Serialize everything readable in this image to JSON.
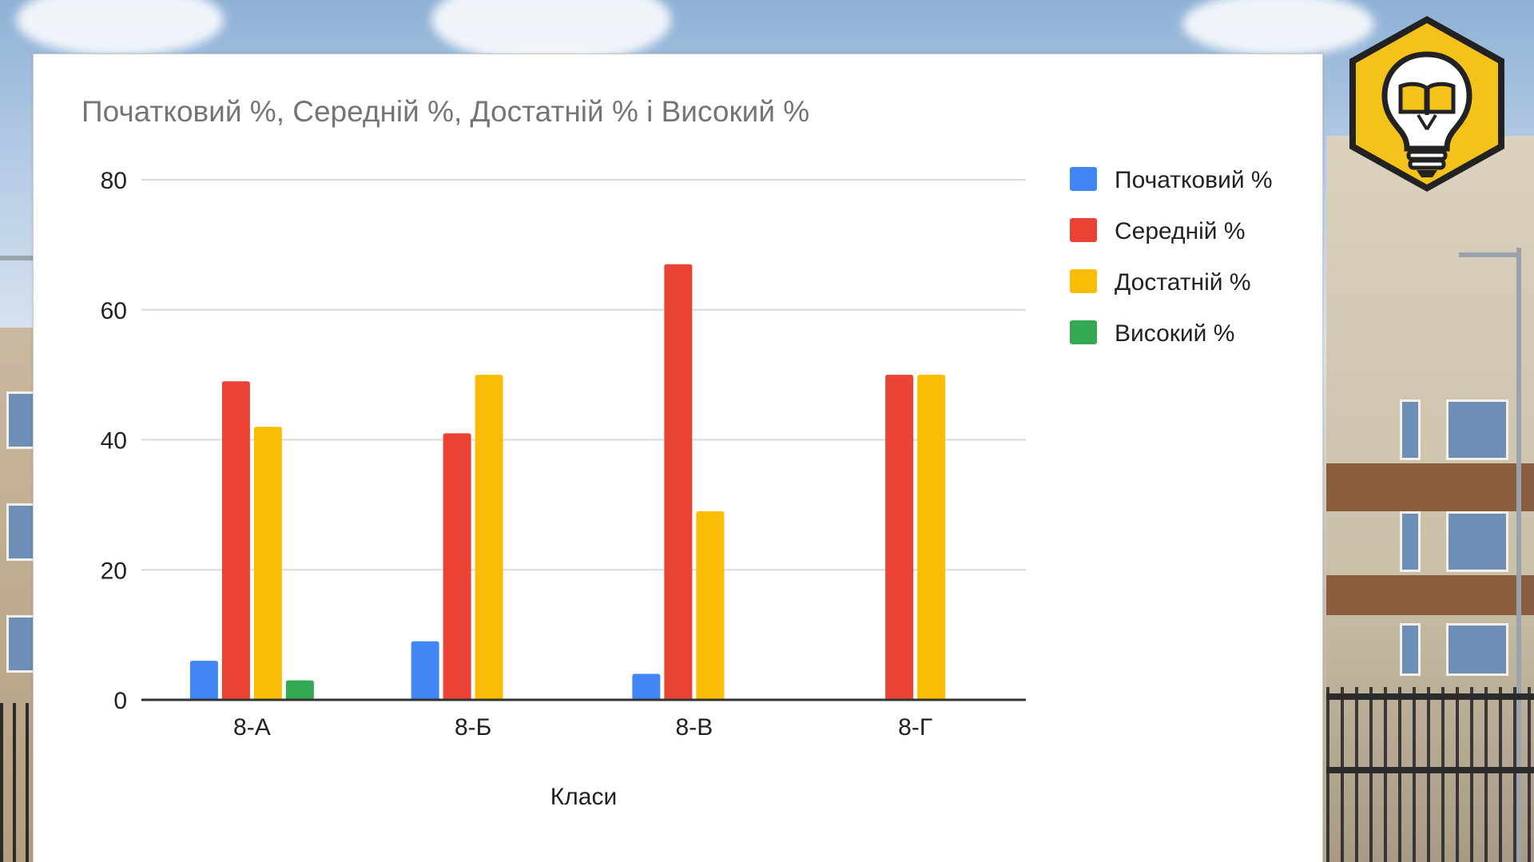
{
  "chart_data": {
    "type": "bar",
    "title": "Початковий %, Середній %, Достатній % і Високий %",
    "xlabel": "Класи",
    "ylabel": "",
    "categories": [
      "8-А",
      "8-Б",
      "8-В",
      "8-Г"
    ],
    "series": [
      {
        "name": "Початковий %",
        "color": "#4285f4",
        "values": [
          6,
          9,
          4,
          0
        ]
      },
      {
        "name": "Середній %",
        "color": "#ea4335",
        "values": [
          49,
          41,
          67,
          50
        ]
      },
      {
        "name": "Достатній %",
        "color": "#fbbc04",
        "values": [
          42,
          50,
          29,
          50
        ]
      },
      {
        "name": "Високий %",
        "color": "#34a853",
        "values": [
          3,
          0,
          0,
          0
        ]
      }
    ],
    "ylim": [
      0,
      80
    ],
    "yticks": [
      "0",
      "20",
      "40",
      "60",
      "80"
    ],
    "grid": true,
    "legend_position": "right"
  },
  "logo": {
    "icon": "lightbulb-book-icon",
    "color": "#f5c21b"
  }
}
